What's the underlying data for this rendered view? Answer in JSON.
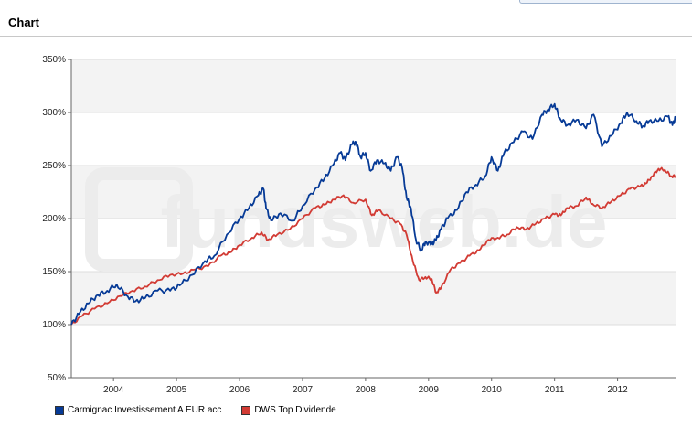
{
  "page": {
    "section_title": "Chart",
    "watermark": "fundsweb.de"
  },
  "colors": {
    "series_1": "#063a96",
    "series_2": "#d23b34",
    "band_light": "#f3f3f3",
    "band_white": "#ffffff",
    "grid": "#dddddd",
    "axis": "#666666",
    "watermark": "#ececec"
  },
  "chart_data": {
    "type": "line",
    "title": "Chart",
    "xlabel": "",
    "ylabel": "",
    "xlim": [
      2003.33,
      2012.92
    ],
    "ylim": [
      50,
      350
    ],
    "x_ticks": [
      2004,
      2005,
      2006,
      2007,
      2008,
      2009,
      2010,
      2011,
      2012
    ],
    "x_tick_labels": [
      "2004",
      "2005",
      "2006",
      "2007",
      "2008",
      "2009",
      "2010",
      "2011",
      "2012"
    ],
    "y_ticks": [
      50,
      100,
      150,
      200,
      250,
      300,
      350
    ],
    "y_tick_labels": [
      "50%",
      "100%",
      "150%",
      "200%",
      "250%",
      "300%",
      "350%"
    ],
    "grid": true,
    "legend_position": "bottom-left",
    "series": [
      {
        "name": "Carmignac Investissement A EUR acc",
        "color": "#063a96",
        "points": [
          [
            2003.33,
            100
          ],
          [
            2003.45,
            110
          ],
          [
            2003.6,
            120
          ],
          [
            2003.75,
            128
          ],
          [
            2003.9,
            132
          ],
          [
            2004.05,
            138
          ],
          [
            2004.2,
            128
          ],
          [
            2004.35,
            122
          ],
          [
            2004.5,
            125
          ],
          [
            2004.7,
            132
          ],
          [
            2004.9,
            132
          ],
          [
            2005.05,
            137
          ],
          [
            2005.25,
            147
          ],
          [
            2005.45,
            160
          ],
          [
            2005.6,
            165
          ],
          [
            2005.8,
            185
          ],
          [
            2006.0,
            200
          ],
          [
            2006.15,
            210
          ],
          [
            2006.3,
            222
          ],
          [
            2006.38,
            228
          ],
          [
            2006.42,
            210
          ],
          [
            2006.5,
            198
          ],
          [
            2006.65,
            205
          ],
          [
            2006.85,
            198
          ],
          [
            2007.0,
            212
          ],
          [
            2007.2,
            228
          ],
          [
            2007.35,
            238
          ],
          [
            2007.5,
            252
          ],
          [
            2007.6,
            262
          ],
          [
            2007.68,
            255
          ],
          [
            2007.78,
            270
          ],
          [
            2007.85,
            272
          ],
          [
            2007.92,
            258
          ],
          [
            2008.0,
            262
          ],
          [
            2008.08,
            245
          ],
          [
            2008.18,
            255
          ],
          [
            2008.3,
            252
          ],
          [
            2008.4,
            245
          ],
          [
            2008.5,
            258
          ],
          [
            2008.58,
            248
          ],
          [
            2008.65,
            220
          ],
          [
            2008.72,
            210
          ],
          [
            2008.8,
            180
          ],
          [
            2008.88,
            170
          ],
          [
            2008.95,
            178
          ],
          [
            2009.05,
            176
          ],
          [
            2009.12,
            180
          ],
          [
            2009.2,
            190
          ],
          [
            2009.3,
            200
          ],
          [
            2009.45,
            208
          ],
          [
            2009.6,
            225
          ],
          [
            2009.75,
            232
          ],
          [
            2009.9,
            240
          ],
          [
            2010.0,
            258
          ],
          [
            2010.1,
            245
          ],
          [
            2010.2,
            262
          ],
          [
            2010.35,
            272
          ],
          [
            2010.5,
            282
          ],
          [
            2010.65,
            275
          ],
          [
            2010.8,
            298
          ],
          [
            2010.9,
            303
          ],
          [
            2011.0,
            308
          ],
          [
            2011.08,
            295
          ],
          [
            2011.2,
            288
          ],
          [
            2011.35,
            293
          ],
          [
            2011.5,
            285
          ],
          [
            2011.62,
            298
          ],
          [
            2011.75,
            268
          ],
          [
            2011.9,
            278
          ],
          [
            2012.05,
            290
          ],
          [
            2012.15,
            300
          ],
          [
            2012.3,
            292
          ],
          [
            2012.4,
            287
          ],
          [
            2012.5,
            292
          ],
          [
            2012.65,
            292
          ],
          [
            2012.8,
            296
          ],
          [
            2012.87,
            288
          ],
          [
            2012.92,
            295
          ]
        ]
      },
      {
        "name": "DWS Top Dividende",
        "color": "#d23b34",
        "points": [
          [
            2003.33,
            100
          ],
          [
            2003.5,
            108
          ],
          [
            2003.7,
            115
          ],
          [
            2003.9,
            120
          ],
          [
            2004.1,
            127
          ],
          [
            2004.3,
            132
          ],
          [
            2004.5,
            136
          ],
          [
            2004.7,
            142
          ],
          [
            2004.9,
            147
          ],
          [
            2005.1,
            148
          ],
          [
            2005.3,
            152
          ],
          [
            2005.5,
            155
          ],
          [
            2005.7,
            165
          ],
          [
            2005.85,
            168
          ],
          [
            2006.0,
            175
          ],
          [
            2006.2,
            182
          ],
          [
            2006.35,
            187
          ],
          [
            2006.45,
            180
          ],
          [
            2006.6,
            185
          ],
          [
            2006.8,
            190
          ],
          [
            2007.0,
            200
          ],
          [
            2007.2,
            210
          ],
          [
            2007.35,
            213
          ],
          [
            2007.5,
            218
          ],
          [
            2007.65,
            222
          ],
          [
            2007.8,
            215
          ],
          [
            2008.0,
            218
          ],
          [
            2008.1,
            203
          ],
          [
            2008.2,
            208
          ],
          [
            2008.4,
            200
          ],
          [
            2008.55,
            195
          ],
          [
            2008.65,
            185
          ],
          [
            2008.75,
            160
          ],
          [
            2008.85,
            142
          ],
          [
            2008.95,
            145
          ],
          [
            2009.05,
            143
          ],
          [
            2009.12,
            130
          ],
          [
            2009.2,
            135
          ],
          [
            2009.35,
            152
          ],
          [
            2009.5,
            158
          ],
          [
            2009.65,
            165
          ],
          [
            2009.8,
            170
          ],
          [
            2009.95,
            180
          ],
          [
            2010.1,
            182
          ],
          [
            2010.25,
            185
          ],
          [
            2010.4,
            192
          ],
          [
            2010.55,
            190
          ],
          [
            2010.7,
            195
          ],
          [
            2010.85,
            200
          ],
          [
            2011.0,
            204
          ],
          [
            2011.1,
            203
          ],
          [
            2011.2,
            210
          ],
          [
            2011.35,
            212
          ],
          [
            2011.5,
            220
          ],
          [
            2011.6,
            214
          ],
          [
            2011.75,
            210
          ],
          [
            2011.9,
            216
          ],
          [
            2012.05,
            222
          ],
          [
            2012.2,
            228
          ],
          [
            2012.35,
            230
          ],
          [
            2012.45,
            233
          ],
          [
            2012.55,
            240
          ],
          [
            2012.65,
            247
          ],
          [
            2012.75,
            246
          ],
          [
            2012.85,
            240
          ],
          [
            2012.92,
            240
          ]
        ]
      }
    ]
  }
}
